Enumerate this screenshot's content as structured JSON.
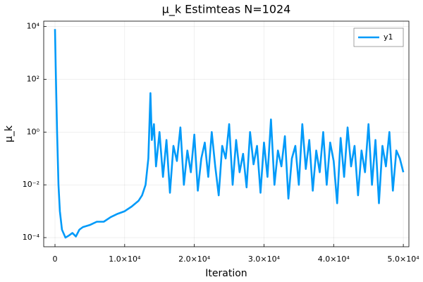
{
  "chart_data": {
    "type": "line",
    "title": "μ_k Estimteas N=1024",
    "xlabel": "Iteration",
    "ylabel": "μ_k",
    "yscale": "log",
    "grid": true,
    "legend": "top-right",
    "xlim": [
      -1620,
      50800
    ],
    "ylim": [
      4.5e-05,
      16000
    ],
    "xticks": [
      0,
      {
        "value": 10000,
        "label": "1.0×10⁴"
      },
      {
        "value": 20000,
        "label": "2.0×10⁴"
      },
      {
        "value": 30000,
        "label": "3.0×10⁴"
      },
      {
        "value": 40000,
        "label": "4.0×10⁴"
      },
      {
        "value": 50000,
        "label": "5.0×10⁴"
      }
    ],
    "yticks": [
      {
        "value": 0.0001,
        "label": "10⁻⁴"
      },
      {
        "value": 0.01,
        "label": "10⁻²"
      },
      {
        "value": 1,
        "label": "10⁰"
      },
      {
        "value": 100,
        "label": "10²"
      },
      {
        "value": 10000,
        "label": "10⁴"
      }
    ],
    "x": [
      0,
      100,
      300,
      500,
      700,
      1000,
      1500,
      2000,
      2500,
      3000,
      3500,
      4000,
      5000,
      6000,
      7000,
      8000,
      9000,
      10000,
      11000,
      12000,
      12500,
      13000,
      13400,
      13700,
      13900,
      14200,
      14500,
      15000,
      15500,
      16000,
      16500,
      17000,
      17500,
      18000,
      18500,
      19000,
      19500,
      20000,
      20500,
      21000,
      21500,
      22000,
      22500,
      23000,
      23500,
      24000,
      24500,
      25000,
      25500,
      26000,
      26500,
      27000,
      27500,
      28000,
      28500,
      29000,
      29500,
      30000,
      30500,
      31000,
      31500,
      32000,
      32500,
      33000,
      33500,
      34000,
      34500,
      35000,
      35500,
      36000,
      36500,
      37000,
      37500,
      38000,
      38500,
      39000,
      39500,
      40000,
      40500,
      41000,
      41500,
      42000,
      42500,
      43000,
      43500,
      44000,
      44500,
      45000,
      45500,
      46000,
      46500,
      47000,
      47500,
      48000,
      48500,
      49000,
      49500,
      50000
    ],
    "series": [
      {
        "name": "y1",
        "color": "#009af9",
        "values": [
          8000,
          300,
          1,
          0.01,
          0.001,
          0.0002,
          0.0001,
          0.00012,
          0.00015,
          0.00011,
          0.0002,
          0.00025,
          0.0003,
          0.0004,
          0.0004,
          0.0006,
          0.0008,
          0.001,
          0.0015,
          0.0025,
          0.004,
          0.01,
          0.1,
          30,
          0.5,
          2,
          0.05,
          1,
          0.02,
          0.5,
          0.005,
          0.3,
          0.08,
          1.5,
          0.01,
          0.2,
          0.03,
          0.8,
          0.006,
          0.1,
          0.4,
          0.02,
          1,
          0.05,
          0.004,
          0.3,
          0.1,
          2,
          0.01,
          0.5,
          0.03,
          0.15,
          0.008,
          1,
          0.06,
          0.3,
          0.005,
          0.4,
          0.02,
          3,
          0.01,
          0.2,
          0.05,
          0.7,
          0.003,
          0.1,
          0.3,
          0.01,
          2,
          0.04,
          0.5,
          0.006,
          0.2,
          0.03,
          1,
          0.01,
          0.4,
          0.08,
          0.002,
          0.6,
          0.02,
          1.5,
          0.05,
          0.3,
          0.004,
          0.2,
          0.03,
          2,
          0.01,
          0.5,
          0.002,
          0.3,
          0.05,
          1,
          0.006,
          0.2,
          0.1,
          0.03
        ]
      }
    ]
  }
}
